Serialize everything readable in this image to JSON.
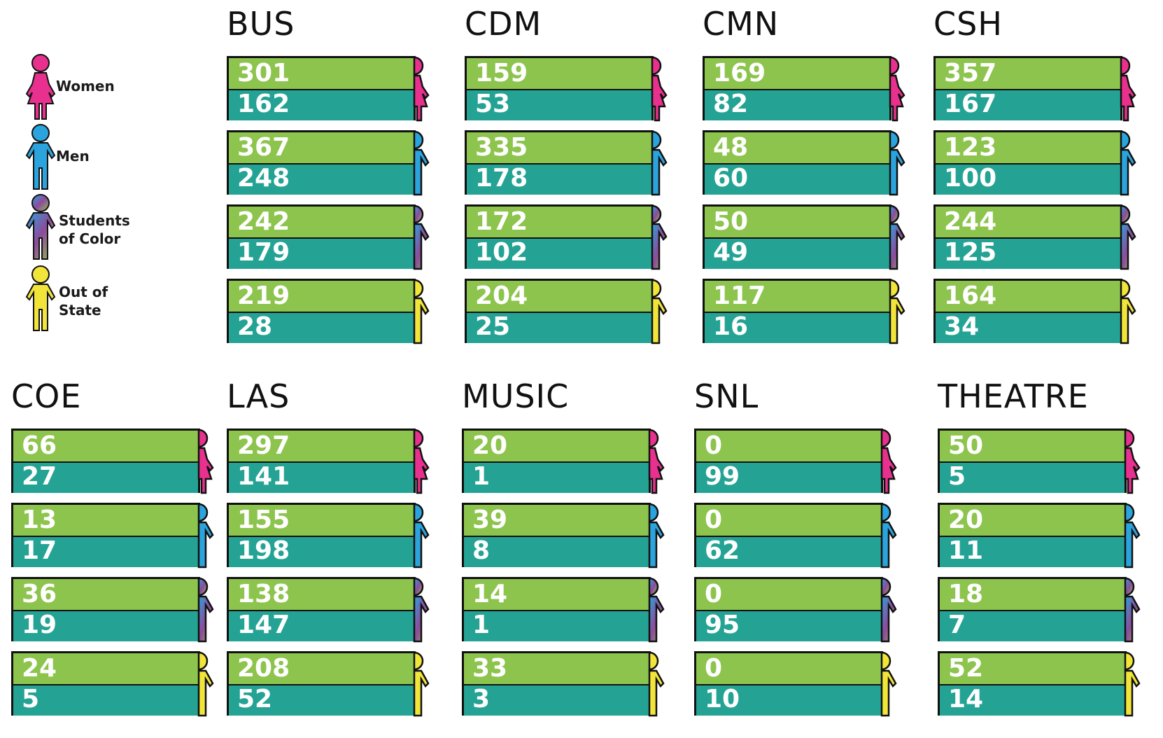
{
  "colors": {
    "women": "#e8318e",
    "men": "#2ba4dd",
    "color_grad": [
      "#2ba4dd",
      "#8e4a9c",
      "#8dc44d"
    ],
    "out_of_state": "#f2e53a",
    "bar_top": "#8dc44d",
    "bar_bottom": "#24a395"
  },
  "legend": [
    {
      "key": "women",
      "label": "Women",
      "icon": "woman-icon"
    },
    {
      "key": "men",
      "label": "Men",
      "icon": "man-icon"
    },
    {
      "key": "color",
      "label": "Students\nof Color",
      "icon": "student-of-color-icon"
    },
    {
      "key": "oos",
      "label": "Out of\nState",
      "icon": "out-of-state-icon"
    }
  ],
  "chart_data": {
    "type": "table",
    "rows": [
      "Women",
      "Men",
      "Students of Color",
      "Out of State"
    ],
    "panels": [
      {
        "name": "BUS",
        "values": [
          [
            301,
            162
          ],
          [
            367,
            248
          ],
          [
            242,
            179
          ],
          [
            219,
            28
          ]
        ]
      },
      {
        "name": "CDM",
        "values": [
          [
            159,
            53
          ],
          [
            335,
            178
          ],
          [
            172,
            102
          ],
          [
            204,
            25
          ]
        ]
      },
      {
        "name": "CMN",
        "values": [
          [
            169,
            82
          ],
          [
            48,
            60
          ],
          [
            50,
            49
          ],
          [
            117,
            16
          ]
        ]
      },
      {
        "name": "CSH",
        "values": [
          [
            357,
            167
          ],
          [
            123,
            100
          ],
          [
            244,
            125
          ],
          [
            164,
            34
          ]
        ]
      },
      {
        "name": "COE",
        "values": [
          [
            66,
            27
          ],
          [
            13,
            17
          ],
          [
            36,
            19
          ],
          [
            24,
            5
          ]
        ]
      },
      {
        "name": "LAS",
        "values": [
          [
            297,
            141
          ],
          [
            155,
            198
          ],
          [
            138,
            147
          ],
          [
            208,
            52
          ]
        ]
      },
      {
        "name": "MUSIC",
        "values": [
          [
            20,
            1
          ],
          [
            39,
            8
          ],
          [
            14,
            1
          ],
          [
            33,
            3
          ]
        ]
      },
      {
        "name": "SNL",
        "values": [
          [
            0,
            99
          ],
          [
            0,
            62
          ],
          [
            0,
            95
          ],
          [
            0,
            10
          ]
        ]
      },
      {
        "name": "THEATRE",
        "values": [
          [
            50,
            5
          ],
          [
            20,
            11
          ],
          [
            18,
            7
          ],
          [
            52,
            14
          ]
        ]
      }
    ]
  }
}
